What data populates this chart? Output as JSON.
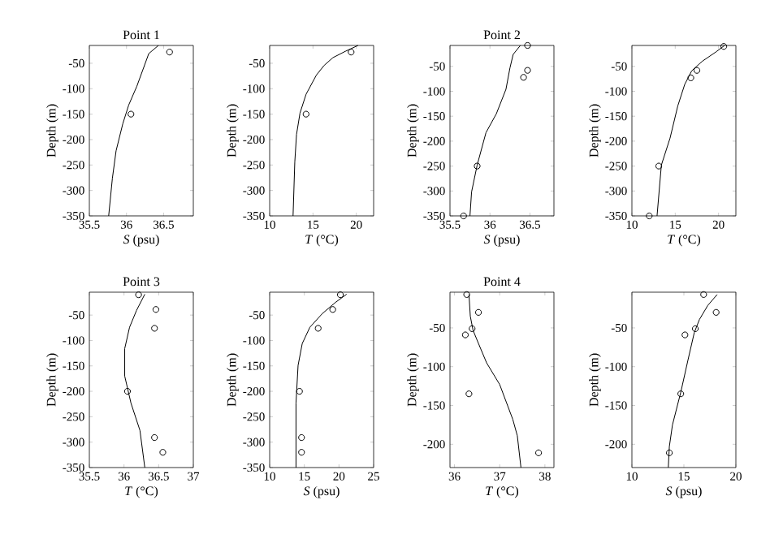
{
  "chart_data": [
    {
      "type": "line",
      "title": "Point 1",
      "xlabel": "*S* (psu)",
      "ylabel": "Depth (m)",
      "xlim": [
        35.5,
        36.9
      ],
      "ylim": [
        -350,
        -15
      ],
      "xticks": [
        35.5,
        36,
        36.5
      ],
      "yticks": [
        -350,
        -300,
        -250,
        -200,
        -150,
        -100,
        -50
      ],
      "series": [
        {
          "type": "line",
          "color": "#000000",
          "x": [
            36.43,
            36.3,
            36.22,
            36.14,
            36.03,
            35.95,
            35.86,
            35.81,
            35.76
          ],
          "values": [
            -15,
            -31,
            -63,
            -95,
            -132,
            -169,
            -222,
            -276,
            -350
          ]
        },
        {
          "type": "scatter",
          "color": "#000000",
          "marker": "circle",
          "x": [
            36.58,
            36.06
          ],
          "values": [
            -28,
            -150
          ]
        }
      ]
    },
    {
      "type": "line",
      "xlabel": "*T* (°C)",
      "ylabel": "Depth (m)",
      "xlim": [
        10,
        22
      ],
      "ylim": [
        -350,
        -15
      ],
      "xticks": [
        10,
        15,
        20
      ],
      "yticks": [
        -350,
        -300,
        -250,
        -200,
        -150,
        -100,
        -50
      ],
      "series": [
        {
          "type": "line",
          "color": "#000000",
          "x": [
            20.2,
            18.8,
            17.3,
            16.3,
            15.4,
            14.2,
            13.5,
            13.1,
            12.9,
            12.7
          ],
          "values": [
            -15,
            -26,
            -39,
            -54,
            -73,
            -111,
            -148,
            -190,
            -244,
            -350
          ]
        },
        {
          "type": "scatter",
          "color": "#000000",
          "marker": "circle",
          "x": [
            19.4,
            14.2
          ],
          "values": [
            -28,
            -150
          ]
        }
      ]
    },
    {
      "type": "line",
      "title": "Point 2",
      "xlabel": "*S* (psu)",
      "ylabel": "Depth (m)",
      "xlim": [
        35.5,
        36.8
      ],
      "ylim": [
        -350,
        -8
      ],
      "xticks": [
        35.5,
        36,
        36.5
      ],
      "yticks": [
        -350,
        -300,
        -250,
        -200,
        -150,
        -100,
        -50
      ],
      "series": [
        {
          "type": "line",
          "color": "#000000",
          "x": [
            36.38,
            36.29,
            36.25,
            36.2,
            36.08,
            35.95,
            35.84,
            35.77,
            35.75
          ],
          "values": [
            -8,
            -26,
            -53,
            -96,
            -145,
            -183,
            -248,
            -302,
            -350
          ]
        },
        {
          "type": "scatter",
          "color": "#000000",
          "marker": "circle",
          "x": [
            36.47,
            36.47,
            36.42,
            35.84,
            35.67
          ],
          "values": [
            -8,
            -58,
            -72,
            -250,
            -350
          ]
        }
      ]
    },
    {
      "type": "line",
      "xlabel": "*T* (°C)",
      "ylabel": "Depth (m)",
      "xlim": [
        10,
        22
      ],
      "ylim": [
        -350,
        -8
      ],
      "xticks": [
        10,
        15,
        20
      ],
      "yticks": [
        -350,
        -300,
        -250,
        -200,
        -150,
        -100,
        -50
      ],
      "series": [
        {
          "type": "line",
          "color": "#000000",
          "x": [
            20.7,
            19.7,
            18.1,
            16.9,
            16.1,
            15.3,
            14.4,
            13.4,
            12.9
          ],
          "values": [
            -8,
            -21,
            -40,
            -59,
            -86,
            -129,
            -194,
            -248,
            -350
          ]
        },
        {
          "type": "scatter",
          "color": "#000000",
          "marker": "circle",
          "x": [
            20.6,
            17.5,
            16.8,
            13.1,
            12.0
          ],
          "values": [
            -10,
            -58,
            -73,
            -250,
            -350
          ]
        }
      ]
    },
    {
      "type": "line",
      "title": "Point 3",
      "xlabel": "*T* (°C)",
      "ylabel": "Depth (m)",
      "xlim": [
        35.5,
        37
      ],
      "ylim": [
        -350,
        -5
      ],
      "xticks": [
        35.5,
        36,
        36.5,
        37
      ],
      "yticks": [
        -350,
        -300,
        -250,
        -200,
        -150,
        -100,
        -50
      ],
      "series": [
        {
          "type": "line",
          "color": "#000000",
          "x": [
            36.3,
            36.18,
            36.08,
            36.01,
            36.01,
            36.1,
            36.23,
            36.3
          ],
          "values": [
            -9,
            -41,
            -74,
            -116,
            -170,
            -223,
            -277,
            -350
          ]
        },
        {
          "type": "scatter",
          "color": "#000000",
          "marker": "circle",
          "x": [
            36.21,
            36.46,
            36.44,
            36.05,
            36.44,
            36.56
          ],
          "values": [
            -10,
            -39,
            -76,
            -200,
            -291,
            -320
          ]
        }
      ]
    },
    {
      "type": "line",
      "xlabel": "*S* (psu)",
      "ylabel": "Depth (m)",
      "xlim": [
        10,
        25
      ],
      "ylim": [
        -350,
        -5
      ],
      "xticks": [
        10,
        15,
        20,
        25
      ],
      "yticks": [
        -350,
        -300,
        -250,
        -200,
        -150,
        -100,
        -50
      ],
      "series": [
        {
          "type": "line",
          "color": "#000000",
          "x": [
            21.1,
            19.5,
            17.6,
            15.8,
            14.7,
            14.1,
            13.8,
            13.8
          ],
          "values": [
            -9,
            -25,
            -47,
            -74,
            -106,
            -149,
            -223,
            -350
          ]
        },
        {
          "type": "scatter",
          "color": "#000000",
          "marker": "circle",
          "x": [
            20.2,
            19.1,
            17.0,
            14.3,
            14.6,
            14.6
          ],
          "values": [
            -10,
            -39,
            -76,
            -200,
            -291,
            -320
          ]
        }
      ]
    },
    {
      "type": "line",
      "title": "Point 4",
      "xlabel": "*T* (°C)",
      "ylabel": "Depth (m)",
      "xlim": [
        35.9,
        38.2
      ],
      "ylim": [
        -230,
        -4
      ],
      "xticks": [
        36,
        37,
        38
      ],
      "yticks": [
        -200,
        -150,
        -100,
        -50
      ],
      "series": [
        {
          "type": "line",
          "color": "#000000",
          "x": [
            36.32,
            36.35,
            36.41,
            36.53,
            36.71,
            37.0,
            37.29,
            37.39,
            37.47
          ],
          "values": [
            -7,
            -35,
            -53,
            -70,
            -95,
            -123,
            -168,
            -189,
            -230
          ]
        },
        {
          "type": "scatter",
          "color": "#000000",
          "marker": "circle",
          "x": [
            36.27,
            36.53,
            36.39,
            36.24,
            36.32,
            37.86
          ],
          "values": [
            -7,
            -30,
            -51,
            -59,
            -135,
            -211
          ]
        }
      ]
    },
    {
      "type": "line",
      "xlabel": "*S* (psu)",
      "ylabel": "Depth (m)",
      "xlim": [
        10,
        20
      ],
      "ylim": [
        -230,
        -4
      ],
      "xticks": [
        10,
        15,
        20
      ],
      "yticks": [
        -200,
        -150,
        -100,
        -50
      ],
      "series": [
        {
          "type": "line",
          "color": "#000000",
          "x": [
            18.2,
            17.3,
            16.5,
            16.0,
            15.4,
            14.7,
            13.9,
            13.6,
            13.5
          ],
          "values": [
            -7,
            -21,
            -39,
            -56,
            -91,
            -133,
            -175,
            -203,
            -230
          ]
        },
        {
          "type": "scatter",
          "color": "#000000",
          "marker": "circle",
          "x": [
            16.9,
            18.1,
            16.1,
            15.1,
            14.7,
            13.6
          ],
          "values": [
            -7,
            -30,
            -51,
            -59,
            -135,
            -211
          ]
        }
      ]
    }
  ]
}
